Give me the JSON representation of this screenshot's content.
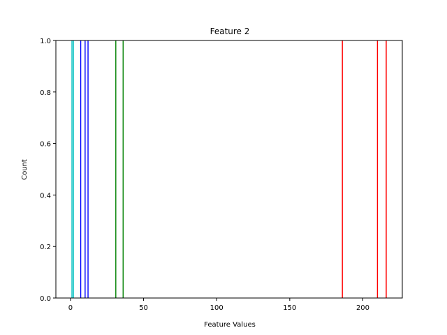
{
  "chart_data": {
    "type": "bar",
    "title": "Feature 2",
    "xlabel": "Feature Values",
    "ylabel": "Count",
    "xlim": [
      -10,
      227
    ],
    "ylim": [
      0,
      1.0
    ],
    "xticks": [
      0,
      50,
      100,
      150,
      200
    ],
    "yticks": [
      0.0,
      0.2,
      0.4,
      0.6,
      0.8,
      1.0
    ],
    "xtick_labels": [
      "0",
      "50",
      "100",
      "150",
      "200"
    ],
    "ytick_labels": [
      "0.0",
      "0.2",
      "0.4",
      "0.6",
      "0.8",
      "1.0"
    ],
    "grid": false,
    "series": [
      {
        "color": "#00bfbf",
        "bars": [
          {
            "x": 1,
            "y": 1.0
          },
          {
            "x": 2,
            "y": 1.0
          }
        ]
      },
      {
        "color": "#0000ff",
        "bars": [
          {
            "x": 7,
            "y": 1.0
          },
          {
            "x": 10,
            "y": 1.0
          },
          {
            "x": 12,
            "y": 1.0
          }
        ]
      },
      {
        "color": "#008000",
        "bars": [
          {
            "x": 31,
            "y": 1.0
          },
          {
            "x": 36,
            "y": 1.0
          }
        ]
      },
      {
        "color": "#ff0000",
        "bars": [
          {
            "x": 186,
            "y": 1.0
          },
          {
            "x": 210,
            "y": 1.0
          },
          {
            "x": 216,
            "y": 1.0
          }
        ]
      }
    ]
  }
}
